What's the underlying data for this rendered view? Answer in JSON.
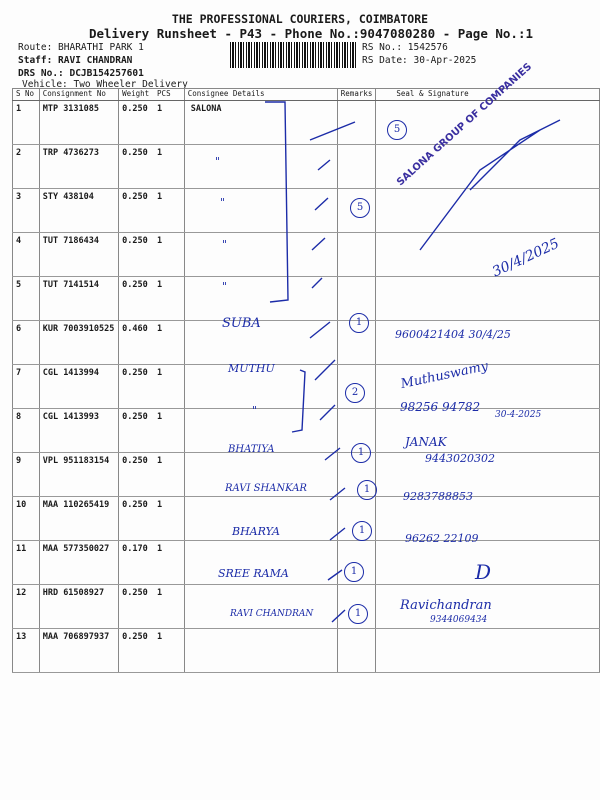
{
  "header": {
    "title": "THE PROFESSIONAL COURIERS, COIMBATORE",
    "subtitle": "Delivery Runsheet - P43 - Phone No.:9047080280 - Page No.:1",
    "route": "Route: BHARATHI PARK 1",
    "staff": "Staff: RAVI CHANDRAN",
    "drs": "DRS No.: DCJB154257601",
    "vehicle": "Vehicle: Two Wheeler Delivery",
    "rs_no": "RS No.: 1542576",
    "rs_date": "RS Date: 30-Apr-2025"
  },
  "columns": [
    "S No",
    "Consignment No",
    "Weight",
    "PCS",
    "Consignee Details",
    "Remarks",
    "Seal & Signature"
  ],
  "rows": [
    {
      "sno": "1",
      "cn": "MTP 3131085",
      "wt": "0.250",
      "pcs": "1",
      "consignee": "SALONA",
      "hand": ""
    },
    {
      "sno": "2",
      "cn": "TRP 4736273",
      "wt": "0.250",
      "pcs": "1",
      "consignee": "",
      "hand": "\""
    },
    {
      "sno": "3",
      "cn": "STY 438104",
      "wt": "0.250",
      "pcs": "1",
      "consignee": "",
      "hand": "\""
    },
    {
      "sno": "4",
      "cn": "TUT 7186434",
      "wt": "0.250",
      "pcs": "1",
      "consignee": "",
      "hand": "\""
    },
    {
      "sno": "5",
      "cn": "TUT 7141514",
      "wt": "0.250",
      "pcs": "1",
      "consignee": "",
      "hand": "\""
    },
    {
      "sno": "6",
      "cn": "KUR 7003910525",
      "wt": "0.460",
      "pcs": "1",
      "consignee": "",
      "hand": "SUBA"
    },
    {
      "sno": "7",
      "cn": "CGL 1413994",
      "wt": "0.250",
      "pcs": "1",
      "consignee": "",
      "hand": "MUTHU"
    },
    {
      "sno": "8",
      "cn": "CGL 1413993",
      "wt": "0.250",
      "pcs": "1",
      "consignee": "",
      "hand": "\""
    },
    {
      "sno": "9",
      "cn": "VPL 951183154",
      "wt": "0.250",
      "pcs": "1",
      "consignee": "",
      "hand": "BHATIYA"
    },
    {
      "sno": "10",
      "cn": "MAA 110265419",
      "wt": "0.250",
      "pcs": "1",
      "consignee": "",
      "hand": "RAVI SHANKAR"
    },
    {
      "sno": "11",
      "cn": "MAA 577350027",
      "wt": "0.170",
      "pcs": "1",
      "consignee": "",
      "hand": "BHARYA"
    },
    {
      "sno": "12",
      "cn": "HRD 61508927",
      "wt": "0.250",
      "pcs": "1",
      "consignee": "",
      "hand": "SREE RAMA"
    },
    {
      "sno": "13",
      "cn": "MAA 706897937",
      "wt": "0.250",
      "pcs": "1",
      "consignee": "",
      "hand": "RAVI CHANDRAN"
    }
  ],
  "remarks": [
    "5",
    "5",
    "1",
    "2",
    "1",
    "1",
    "1",
    "1",
    "1"
  ],
  "signatures": [
    "9600421404  30/4/25",
    "Muthuswamy",
    "98256 94782",
    "30-4-2025",
    "JANAK",
    "9443020302",
    "9283788853",
    "96262 22109",
    "Ravichandran",
    "9344069434",
    "30/4/2025"
  ],
  "stamp": "SALONA GROUP OF COMPANIES",
  "ink_color": "#1c2ca8"
}
